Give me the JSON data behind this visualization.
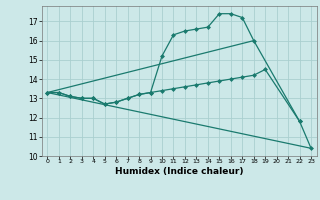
{
  "xlabel": "Humidex (Indice chaleur)",
  "xlim": [
    -0.5,
    23.5
  ],
  "ylim": [
    10,
    17.8
  ],
  "yticks": [
    10,
    11,
    12,
    13,
    14,
    15,
    16,
    17
  ],
  "xticks": [
    0,
    1,
    2,
    3,
    4,
    5,
    6,
    7,
    8,
    9,
    10,
    11,
    12,
    13,
    14,
    15,
    16,
    17,
    18,
    19,
    20,
    21,
    22,
    23
  ],
  "bg_color": "#cce8e8",
  "grid_color": "#aacfcf",
  "line_color": "#1a7a6e",
  "line1_x": [
    0,
    1,
    2,
    3,
    4,
    5,
    6,
    7,
    8,
    9,
    10,
    11,
    12,
    13,
    14,
    15,
    16,
    17,
    18,
    22
  ],
  "line1_y": [
    13.3,
    13.3,
    13.1,
    13.0,
    13.0,
    12.7,
    12.8,
    13.0,
    13.2,
    13.3,
    15.2,
    16.3,
    16.5,
    16.6,
    16.7,
    17.4,
    17.4,
    17.2,
    16.0,
    11.8
  ],
  "line2_x": [
    0,
    1,
    2,
    3,
    4,
    5,
    6,
    7,
    8,
    9,
    10,
    11,
    12,
    13,
    14,
    15,
    16,
    17,
    18,
    19,
    22,
    23
  ],
  "line2_y": [
    13.3,
    13.3,
    13.1,
    13.0,
    13.0,
    12.7,
    12.8,
    13.0,
    13.2,
    13.3,
    13.4,
    13.5,
    13.6,
    13.7,
    13.8,
    13.9,
    14.0,
    14.1,
    14.2,
    14.5,
    11.8,
    10.4
  ],
  "line3_x": [
    0,
    18
  ],
  "line3_y": [
    13.3,
    16.0
  ],
  "line4_x": [
    0,
    23
  ],
  "line4_y": [
    13.3,
    10.4
  ]
}
